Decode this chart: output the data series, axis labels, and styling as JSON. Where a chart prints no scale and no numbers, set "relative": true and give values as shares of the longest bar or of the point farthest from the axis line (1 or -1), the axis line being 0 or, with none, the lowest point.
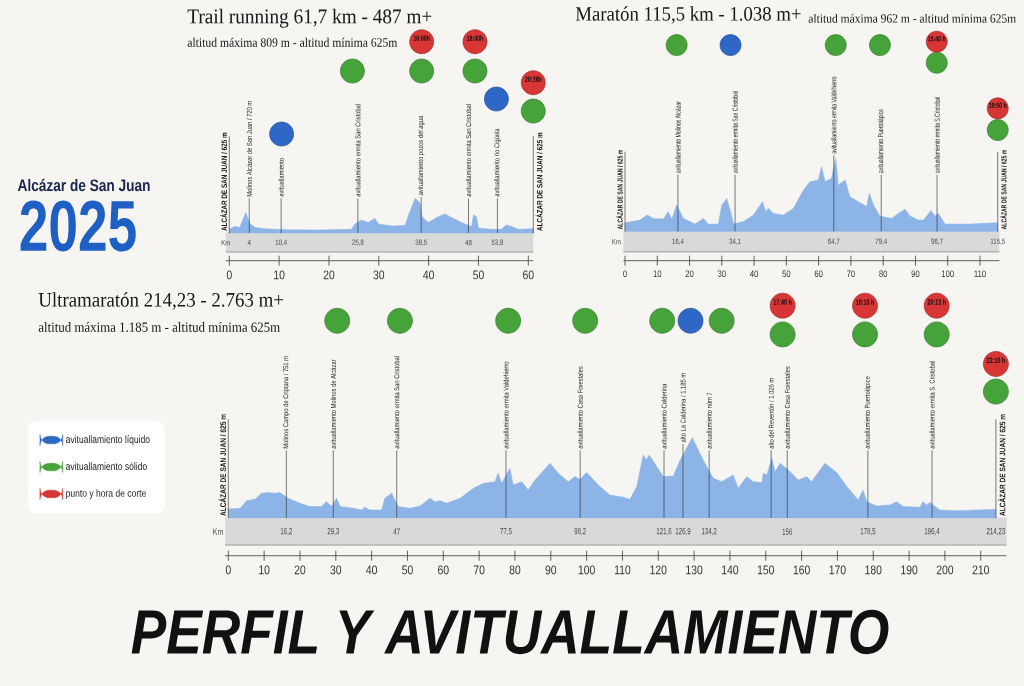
{
  "chart_data": [
    {
      "type": "other",
      "annotations": [
        "Alcázar de San Juan",
        "2025"
      ]
    },
    {
      "type": "area",
      "title": "Trail running 61,7 km - 487 m+",
      "subtitle": "altitud máxima 809 m - altitud mínima 625m",
      "relative": true,
      "xlim": [
        -0.7,
        61
      ],
      "xticks": [
        0,
        10,
        20,
        30,
        40,
        50,
        60
      ],
      "x2lim": [
        -0.7,
        61
      ],
      "x2label": "Km",
      "x2ticks": [
        4,
        {
          "value": 10.4,
          "label": "10,4"
        },
        {
          "value": 25.8,
          "label": "25,8"
        },
        {
          "value": 38.5,
          "label": "38,5"
        },
        48,
        {
          "value": 53.8,
          "label": "53,8"
        }
      ],
      "series": [
        {
          "type": "area",
          "color": "#8db4e6",
          "x": [
            0,
            1.1,
            2.1,
            3.3,
            4.1,
            5.2,
            7.2,
            11.2,
            17.9,
            24.5,
            25.2,
            26.5,
            27.9,
            29.2,
            29.9,
            32.6,
            35.3,
            36.1,
            37.3,
            38.3,
            38.7,
            39.9,
            41.9,
            43.3,
            44.6,
            46.6,
            48.6,
            49.0,
            49.6,
            50.0,
            52.6,
            54.6,
            55.6,
            56.7,
            58.0,
            61.0
          ],
          "values": [
            0.021,
            0.035,
            0.031,
            0.108,
            0.052,
            0.03,
            0.024,
            0.019,
            0.017,
            0.021,
            0.049,
            0.07,
            0.056,
            0.078,
            0.049,
            0.038,
            0.042,
            0.104,
            0.183,
            0.157,
            0.087,
            0.056,
            0.087,
            0.101,
            0.083,
            0.056,
            0.035,
            0.096,
            0.087,
            0.028,
            0.021,
            0.021,
            0.043,
            0.035,
            0.021,
            0.024
          ]
        },
        {
          "type": "scatter",
          "marker": "circle",
          "color": "#2f67c7",
          "x": [
            10.5,
            53.6
          ],
          "values": [
            0.518,
            0.701
          ]
        },
        {
          "type": "scatter",
          "marker": "circle",
          "color": "#45a33a",
          "x": [
            24.7,
            38.6,
            49.3,
            61.0
          ],
          "values": [
            0.847,
            0.847,
            0.847,
            0.638
          ]
        },
        {
          "type": "scatter",
          "marker": "circle",
          "color": "#d83535",
          "x": [
            38.6,
            49.3,
            61.0
          ],
          "values": [
            1,
            1,
            0.786
          ]
        }
      ],
      "annotations": [
        {
          "text": "16:00h",
          "x": 38.6,
          "y": 1
        },
        {
          "text": "18:00h",
          "x": 49.3,
          "y": 1
        },
        {
          "text": "20:28h",
          "x": 61.0,
          "y": 0.786
        }
      ],
      "ref_lines": [
        {
          "axis": "x",
          "value": 0,
          "label": "ALCÁZAR DE SAN JUAN / 625 m"
        },
        {
          "axis": "x",
          "value": 4,
          "label": "Molinos Alcázar de San Juan / 720 m"
        },
        {
          "axis": "x",
          "value": 10.4,
          "label": "avituallamiento"
        },
        {
          "axis": "x",
          "value": 25.8,
          "label": "avituallamiento ermita San Cristobal"
        },
        {
          "axis": "x",
          "value": 38.5,
          "label": "avituallamiento pozos del agua"
        },
        {
          "axis": "x",
          "value": 48,
          "label": "avituallamiento ermita San Cristobal"
        },
        {
          "axis": "x",
          "value": 53.8,
          "label": "avituallamiento río Cigüela"
        },
        {
          "axis": "x",
          "value": 61,
          "label": "ALCÁZAR DE SAN JUAN / 625 m"
        }
      ]
    },
    {
      "type": "area",
      "title": "Maratón 115,5 km - 1.038 m+",
      "subtitle": "altitud máxima 962 m - altitud mínima 625m",
      "relative": true,
      "xlim": [
        -0.5,
        116
      ],
      "xticks": [
        0,
        10,
        20,
        30,
        40,
        50,
        60,
        70,
        80,
        90,
        100,
        110
      ],
      "x2lim": [
        -0.5,
        116
      ],
      "x2label": "Km",
      "x2ticks": [
        {
          "value": 16.4,
          "label": "16,4"
        },
        {
          "value": 34.1,
          "label": "34,1"
        },
        {
          "value": 64.7,
          "label": "64,7"
        },
        {
          "value": 79.4,
          "label": "79,4"
        },
        {
          "value": 96.7,
          "label": "96,7"
        },
        {
          "value": 115.5,
          "label": "115,5"
        }
      ],
      "series": [
        {
          "type": "area",
          "color": "#8db4e6",
          "x": [
            0,
            2.1,
            4.6,
            6.9,
            8.8,
            11.9,
            13.4,
            14.5,
            16.0,
            18.1,
            21.7,
            24.3,
            25.8,
            28.9,
            30.0,
            31.5,
            32.9,
            33.6,
            36.7,
            39.8,
            42.6,
            43.6,
            44.4,
            46.0,
            49.1,
            52.2,
            55.3,
            57.3,
            59.9,
            60.9,
            62.0,
            64.0,
            65.3,
            66.1,
            68.2,
            69.7,
            72.3,
            74.9,
            75.7,
            77.0,
            79.0,
            82.6,
            84.7,
            86.8,
            88.3,
            90.9,
            92.5,
            94.8,
            96.1,
            97.1,
            99.2,
            106.9,
            115.2,
            115.5
          ],
          "values": [
            0.047,
            0.053,
            0.061,
            0.088,
            0.07,
            0.067,
            0.105,
            0.065,
            0.14,
            0.07,
            0.04,
            0.07,
            0.04,
            0.04,
            0.14,
            0.175,
            0.096,
            0.04,
            0.053,
            0.088,
            0.158,
            0.105,
            0.123,
            0.096,
            0.088,
            0.123,
            0.219,
            0.263,
            0.272,
            0.342,
            0.263,
            0.281,
            0.386,
            0.246,
            0.272,
            0.184,
            0.158,
            0.132,
            0.202,
            0.14,
            0.082,
            0.07,
            0.096,
            0.118,
            0.082,
            0.061,
            0.061,
            0.111,
            0.082,
            0.096,
            0.04,
            0.04,
            0.047,
            0.04
          ]
        },
        {
          "type": "scatter",
          "marker": "circle",
          "color": "#2f67c7",
          "x": [
            32.7
          ],
          "values": [
            0.982
          ]
        },
        {
          "type": "scatter",
          "marker": "circle",
          "color": "#45a33a",
          "x": [
            16.0,
            65.3,
            79.0,
            96.6,
            115.5
          ],
          "values": [
            0.982,
            0.982,
            0.982,
            0.889,
            0.535
          ]
        },
        {
          "type": "scatter",
          "marker": "circle",
          "color": "#d83535",
          "x": [
            96.6,
            115.5
          ],
          "values": [
            1,
            0.649
          ]
        }
      ],
      "annotations": [
        {
          "text": "15:40 h",
          "x": 96.6,
          "y": 1
        },
        {
          "text": "19:50 h",
          "x": 115.5,
          "y": 0.649
        }
      ],
      "ref_lines": [
        {
          "axis": "x",
          "value": 0,
          "label": "ALCÁZAR DE SAN JUAN / 625 m"
        },
        {
          "axis": "x",
          "value": 16.4,
          "label": "avituallamiento Molinos Alcázar"
        },
        {
          "axis": "x",
          "value": 34.1,
          "label": "avituallamiento ermita San Cristobal"
        },
        {
          "axis": "x",
          "value": 64.7,
          "label": "avituallamiento ermita Valdehierro"
        },
        {
          "axis": "x",
          "value": 79.4,
          "label": "avituallamiento Puertolápice"
        },
        {
          "axis": "x",
          "value": 96.7,
          "label": "avituallamiento ermita S.Cristobal"
        },
        {
          "axis": "x",
          "value": 115.5,
          "label": "ALCÁZAR DE SAN JUAN / 625 m"
        }
      ]
    },
    {
      "type": "area",
      "title": "Ultramaratón 214,23 - 2.763 m+",
      "subtitle": "altitud máxima 1.185 m - altitud mínima 625m",
      "relative": true,
      "legend": "left",
      "xlim": [
        -0.9,
        217.2
      ],
      "xticks": [
        0,
        10,
        20,
        30,
        40,
        50,
        60,
        70,
        80,
        90,
        100,
        110,
        120,
        130,
        140,
        150,
        160,
        170,
        180,
        190,
        200,
        210
      ],
      "x2lim": [
        -0.9,
        217.2
      ],
      "x2label": "Km",
      "x2ticks": [
        {
          "value": 16.2,
          "label": "16,2"
        },
        {
          "value": 29.3,
          "label": "29,3"
        },
        47,
        {
          "value": 77.5,
          "label": "77,5"
        },
        {
          "value": 98.2,
          "label": "98,2"
        },
        {
          "value": 121.6,
          "label": "121,6"
        },
        {
          "value": 126.9,
          "label": "126,9"
        },
        {
          "value": 134.2,
          "label": "134,2"
        },
        156,
        {
          "value": 178.5,
          "label": "178,5"
        },
        {
          "value": 196.4,
          "label": "196,4"
        },
        {
          "value": 214.23,
          "label": "214,23"
        }
      ],
      "series": [
        {
          "type": "area",
          "color": "#8db4e6",
          "x": [
            0,
            3.3,
            5.1,
            7.4,
            9.3,
            11.2,
            13.0,
            14.4,
            16.7,
            20.0,
            22.8,
            26.0,
            27.4,
            28.8,
            30.2,
            31.2,
            34.9,
            37.2,
            38.1,
            39.5,
            42.8,
            43.7,
            45.6,
            47.4,
            50.7,
            53.5,
            56.3,
            57.7,
            59.1,
            60.9,
            64.7,
            68.4,
            71.2,
            74.4,
            75.3,
            76.3,
            78.6,
            79.5,
            81.9,
            83.7,
            85.6,
            89.8,
            92.1,
            94.9,
            96.7,
            98.1,
            100.0,
            103.7,
            106.5,
            110.2,
            112.1,
            114.0,
            115.8,
            116.6,
            117.5,
            119.6,
            121.4,
            124.2,
            126.1,
            129.5,
            131.6,
            133.5,
            135.4,
            137.7,
            140.9,
            142.3,
            144.7,
            146.5,
            148.9,
            149.3,
            150.3,
            151.7,
            152.6,
            154.0,
            156.8,
            159.1,
            161.4,
            162.8,
            166.5,
            169.8,
            172.6,
            175.8,
            177.1,
            178.2,
            181.0,
            184.7,
            186.5,
            188.4,
            193.1,
            193.8,
            194.9,
            195.8,
            198.6,
            203.3,
            214.23
          ],
          "values": [
            0.044,
            0.047,
            0.083,
            0.089,
            0.118,
            0.121,
            0.118,
            0.121,
            0.094,
            0.071,
            0.055,
            0.055,
            0.078,
            0.055,
            0.094,
            0.055,
            0.047,
            0.039,
            0.052,
            0.039,
            0.039,
            0.094,
            0.118,
            0.055,
            0.047,
            0.058,
            0.094,
            0.078,
            0.083,
            0.071,
            0.094,
            0.141,
            0.165,
            0.172,
            0.212,
            0.165,
            0.235,
            0.157,
            0.172,
            0.133,
            0.18,
            0.259,
            0.212,
            0.172,
            0.196,
            0.183,
            0.215,
            0.149,
            0.11,
            0.099,
            0.089,
            0.149,
            0.298,
            0.274,
            0.298,
            0.243,
            0.196,
            0.199,
            0.274,
            0.379,
            0.306,
            0.243,
            0.188,
            0.172,
            0.204,
            0.141,
            0.196,
            0.172,
            0.168,
            0.212,
            0.204,
            0.282,
            0.219,
            0.259,
            0.219,
            0.18,
            0.196,
            0.172,
            0.259,
            0.215,
            0.149,
            0.086,
            0.133,
            0.078,
            0.058,
            0.063,
            0.078,
            0.055,
            0.052,
            0.078,
            0.063,
            0.074,
            0.039,
            0.036,
            0.042
          ]
        },
        {
          "type": "scatter",
          "marker": "circle",
          "name": "avituallamiento líquido",
          "color": "#2f67c7",
          "x": [
            129.0
          ],
          "values": [
            0.929
          ]
        },
        {
          "type": "scatter",
          "marker": "circle",
          "name": "avituallamiento sólido",
          "color": "#45a33a",
          "x": [
            30.4,
            47.9,
            78.1,
            99.6,
            121.1,
            137.7,
            154.7,
            177.7,
            197.7,
            214.23
          ],
          "values": [
            0.929,
            0.929,
            0.929,
            0.929,
            0.929,
            0.929,
            0.865,
            0.865,
            0.865,
            0.596
          ]
        },
        {
          "type": "scatter",
          "marker": "circle",
          "name": "punto y hora de corte",
          "color": "#d83535",
          "x": [
            154.7,
            177.7,
            197.7,
            214.23
          ],
          "values": [
            1,
            1,
            1,
            0.726
          ]
        }
      ],
      "annotations": [
        {
          "text": "17:40 h",
          "x": 154.7,
          "y": 1
        },
        {
          "text": "18:15 h",
          "x": 177.7,
          "y": 1
        },
        {
          "text": "20:13 h",
          "x": 197.7,
          "y": 1
        },
        {
          "text": "22:10 h",
          "x": 214.23,
          "y": 0.726
        }
      ],
      "ref_lines": [
        {
          "axis": "x",
          "value": 0,
          "label": "ALCÁZAR DE SAN JUAN / 625 m"
        },
        {
          "axis": "x",
          "value": 16.2,
          "label": "Molinos Campo de Criptana / 751 m"
        },
        {
          "axis": "x",
          "value": 29.3,
          "label": "avituallamiento Molinos de Alcázar"
        },
        {
          "axis": "x",
          "value": 47,
          "label": "avituallamiento ermita San Cristobal"
        },
        {
          "axis": "x",
          "value": 77.5,
          "label": "avituallamiento ermita Valdehierro"
        },
        {
          "axis": "x",
          "value": 98.2,
          "label": "avituallamiento Casa Forestales"
        },
        {
          "axis": "x",
          "value": 121.6,
          "label": "avituallamiento Calderina"
        },
        {
          "axis": "x",
          "value": 126.9,
          "label": "alto La Calderina / 1.185 m"
        },
        {
          "axis": "x",
          "value": 134.2,
          "label": "avituallamiento núm 7"
        },
        {
          "axis": "x",
          "value": 151.5,
          "label": "alto del Reventón / 1.026 m"
        },
        {
          "axis": "x",
          "value": 156,
          "label": "avituallamiento Casa Forestales"
        },
        {
          "axis": "x",
          "value": 178.5,
          "label": "avituallamiento Puertolápice"
        },
        {
          "axis": "x",
          "value": 196.4,
          "label": "avituallamiento ermita S. Cristobal"
        },
        {
          "axis": "x",
          "value": 214.23,
          "label": "ALCÁZAR DE SAN JUAN / 625 m"
        }
      ]
    },
    {
      "type": "other",
      "title": "PERFIL Y AVITUALLAMIENTO"
    }
  ]
}
